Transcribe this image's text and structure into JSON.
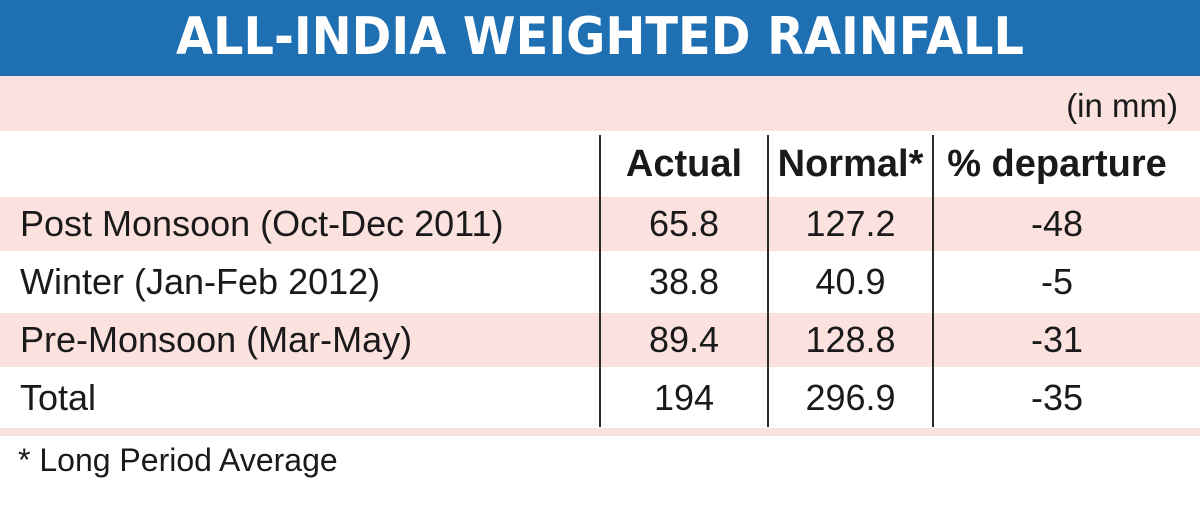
{
  "title": "ALL-INDIA WEIGHTED RAINFALL",
  "unit": "(in mm)",
  "colors": {
    "banner": "#1f6fb3",
    "band": "#fce2df"
  },
  "chart_data": {
    "type": "table",
    "title": "ALL-INDIA WEIGHTED RAINFALL",
    "columns": [
      "Actual",
      "Normal*",
      "% departure"
    ],
    "rows": [
      {
        "label": "Post Monsoon (Oct-Dec 2011)",
        "actual": "65.8",
        "normal": "127.2",
        "departure": "-48"
      },
      {
        "label": "Winter (Jan-Feb 2012)",
        "actual": "38.8",
        "normal": "40.9",
        "departure": "-5"
      },
      {
        "label": "Pre-Monsoon (Mar-May)",
        "actual": "89.4",
        "normal": "128.8",
        "departure": "-31"
      },
      {
        "label": "Total",
        "actual": "194",
        "normal": "296.9",
        "departure": "-35"
      }
    ]
  },
  "footnote": "* Long Period Average"
}
